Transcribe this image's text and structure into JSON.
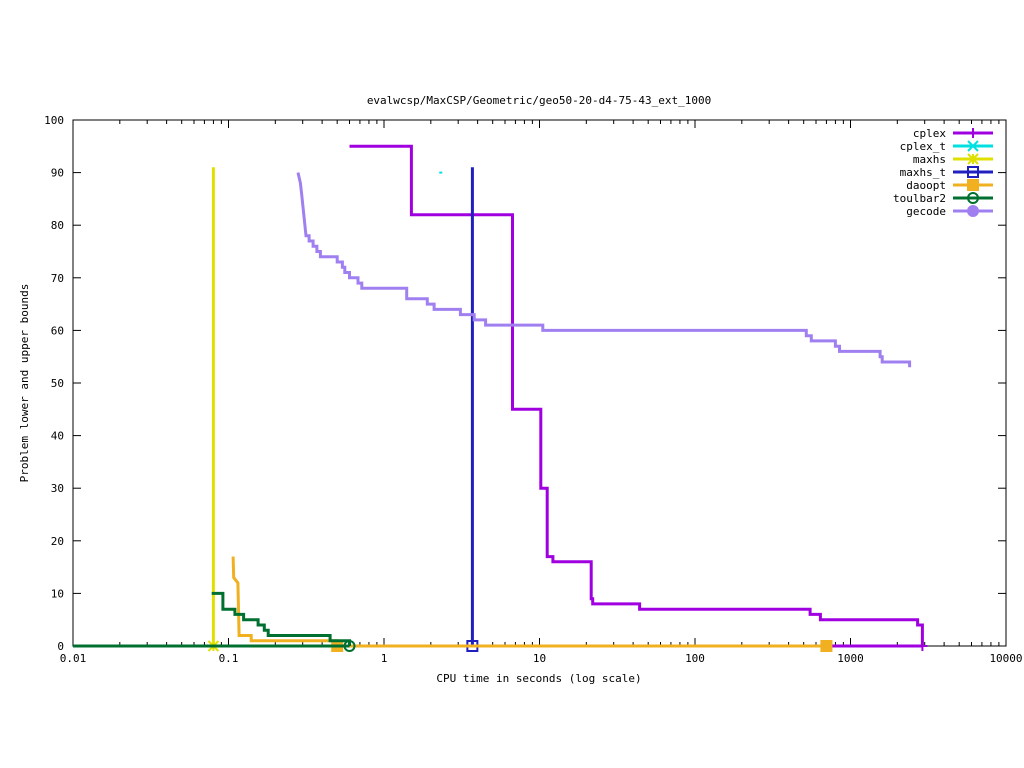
{
  "chart_data": {
    "type": "line",
    "title": "evalwcsp/MaxCSP/Geometric/geo50-20-d4-75-43_ext_1000",
    "xlabel": "CPU time in seconds (log scale)",
    "ylabel": "Problem lower and upper bounds",
    "x_scale": "log",
    "xlim": [
      0.01,
      10000
    ],
    "ylim": [
      0,
      100
    ],
    "x_ticks": [
      0.01,
      0.1,
      1,
      10,
      100,
      1000,
      10000
    ],
    "x_tick_labels": [
      "0.01",
      "0.1",
      "1",
      "10",
      "100",
      "1000",
      "10000"
    ],
    "y_ticks": [
      0,
      10,
      20,
      30,
      40,
      50,
      60,
      70,
      80,
      90,
      100
    ],
    "y_tick_labels": [
      "0",
      "10",
      "20",
      "30",
      "40",
      "50",
      "60",
      "70",
      "80",
      "90",
      "100"
    ],
    "grid": false,
    "legend_position": "top-right",
    "series": [
      {
        "name": "cplex",
        "color": "#a000e0",
        "marker": "plus",
        "upper": [
          [
            0.6,
            95
          ],
          [
            1.5,
            95
          ],
          [
            1.5,
            82
          ],
          [
            6.7,
            82
          ],
          [
            6.7,
            45
          ],
          [
            10.2,
            45
          ],
          [
            10.2,
            30
          ],
          [
            11.2,
            30
          ],
          [
            11.2,
            17
          ],
          [
            12.2,
            17
          ],
          [
            12.2,
            16
          ],
          [
            21.5,
            16
          ],
          [
            21.5,
            9
          ],
          [
            22,
            9
          ],
          [
            22,
            8
          ],
          [
            44,
            8
          ],
          [
            44,
            7
          ],
          [
            550,
            7
          ],
          [
            550,
            6
          ],
          [
            640,
            6
          ],
          [
            640,
            5
          ],
          [
            2700,
            5
          ],
          [
            2700,
            4
          ],
          [
            2900,
            4
          ],
          [
            2900,
            0
          ]
        ],
        "lower": [
          [
            700,
            0
          ],
          [
            2900,
            0
          ]
        ],
        "markers": [
          [
            2900,
            0
          ]
        ]
      },
      {
        "name": "cplex_t",
        "color": "#00e0e0",
        "marker": "cross",
        "upper": [
          [
            2.3,
            90
          ]
        ],
        "lower": [],
        "markers": []
      },
      {
        "name": "maxhs",
        "color": "#e0e000",
        "marker": "star",
        "upper": [
          [
            0.08,
            91
          ],
          [
            0.08,
            0
          ]
        ],
        "lower": [],
        "markers": [
          [
            0.08,
            0
          ]
        ]
      },
      {
        "name": "maxhs_t",
        "color": "#2020c0",
        "marker": "open-square",
        "upper": [
          [
            3.7,
            91
          ],
          [
            3.7,
            0
          ]
        ],
        "lower": [],
        "markers": [
          [
            3.7,
            0
          ]
        ]
      },
      {
        "name": "daoopt",
        "color": "#f0b020",
        "marker": "filled-square",
        "upper": [
          [
            0.107,
            17
          ],
          [
            0.108,
            13
          ],
          [
            0.115,
            12
          ],
          [
            0.117,
            2
          ],
          [
            0.14,
            2
          ],
          [
            0.14,
            1
          ],
          [
            0.5,
            1
          ],
          [
            0.5,
            0
          ]
        ],
        "lower": [
          [
            0.01,
            0
          ],
          [
            700,
            0
          ]
        ],
        "markers": [
          [
            0.5,
            0
          ],
          [
            700,
            0
          ]
        ]
      },
      {
        "name": "toulbar2",
        "color": "#007030",
        "marker": "open-circle",
        "upper": [
          [
            0.078,
            10
          ],
          [
            0.092,
            10
          ],
          [
            0.092,
            7
          ],
          [
            0.11,
            7
          ],
          [
            0.11,
            6
          ],
          [
            0.125,
            6
          ],
          [
            0.125,
            5
          ],
          [
            0.155,
            5
          ],
          [
            0.155,
            4
          ],
          [
            0.17,
            4
          ],
          [
            0.17,
            3
          ],
          [
            0.18,
            3
          ],
          [
            0.18,
            2
          ],
          [
            0.45,
            2
          ],
          [
            0.45,
            1
          ],
          [
            0.6,
            1
          ],
          [
            0.6,
            0
          ]
        ],
        "lower": [
          [
            0.01,
            0
          ],
          [
            0.6,
            0
          ]
        ],
        "markers": [
          [
            0.6,
            0
          ]
        ]
      },
      {
        "name": "gecode",
        "color": "#a080f0",
        "marker": "filled-circle",
        "upper": [
          [
            0.28,
            90
          ],
          [
            0.29,
            88
          ],
          [
            0.295,
            86
          ],
          [
            0.3,
            84
          ],
          [
            0.305,
            82
          ],
          [
            0.31,
            80
          ],
          [
            0.315,
            78
          ],
          [
            0.33,
            78
          ],
          [
            0.33,
            77
          ],
          [
            0.35,
            77
          ],
          [
            0.35,
            76
          ],
          [
            0.37,
            76
          ],
          [
            0.37,
            75
          ],
          [
            0.39,
            75
          ],
          [
            0.39,
            74
          ],
          [
            0.5,
            74
          ],
          [
            0.5,
            73
          ],
          [
            0.54,
            73
          ],
          [
            0.54,
            72
          ],
          [
            0.56,
            72
          ],
          [
            0.56,
            71
          ],
          [
            0.6,
            71
          ],
          [
            0.6,
            70
          ],
          [
            0.68,
            70
          ],
          [
            0.68,
            69
          ],
          [
            0.72,
            69
          ],
          [
            0.72,
            68
          ],
          [
            1.4,
            68
          ],
          [
            1.4,
            66
          ],
          [
            1.9,
            66
          ],
          [
            1.9,
            65
          ],
          [
            2.1,
            65
          ],
          [
            2.1,
            64
          ],
          [
            3.1,
            64
          ],
          [
            3.1,
            63
          ],
          [
            3.8,
            63
          ],
          [
            3.8,
            62
          ],
          [
            4.5,
            62
          ],
          [
            4.5,
            61
          ],
          [
            6.5,
            61
          ],
          [
            6.5,
            61
          ],
          [
            10.5,
            61
          ],
          [
            10.5,
            60
          ],
          [
            520,
            60
          ],
          [
            520,
            59
          ],
          [
            560,
            59
          ],
          [
            560,
            58
          ],
          [
            800,
            58
          ],
          [
            800,
            57
          ],
          [
            850,
            57
          ],
          [
            850,
            56
          ],
          [
            1550,
            56
          ],
          [
            1550,
            55
          ],
          [
            1600,
            55
          ],
          [
            1600,
            54
          ],
          [
            2400,
            54
          ],
          [
            2400,
            53
          ]
        ],
        "lower": [],
        "markers": []
      }
    ]
  }
}
